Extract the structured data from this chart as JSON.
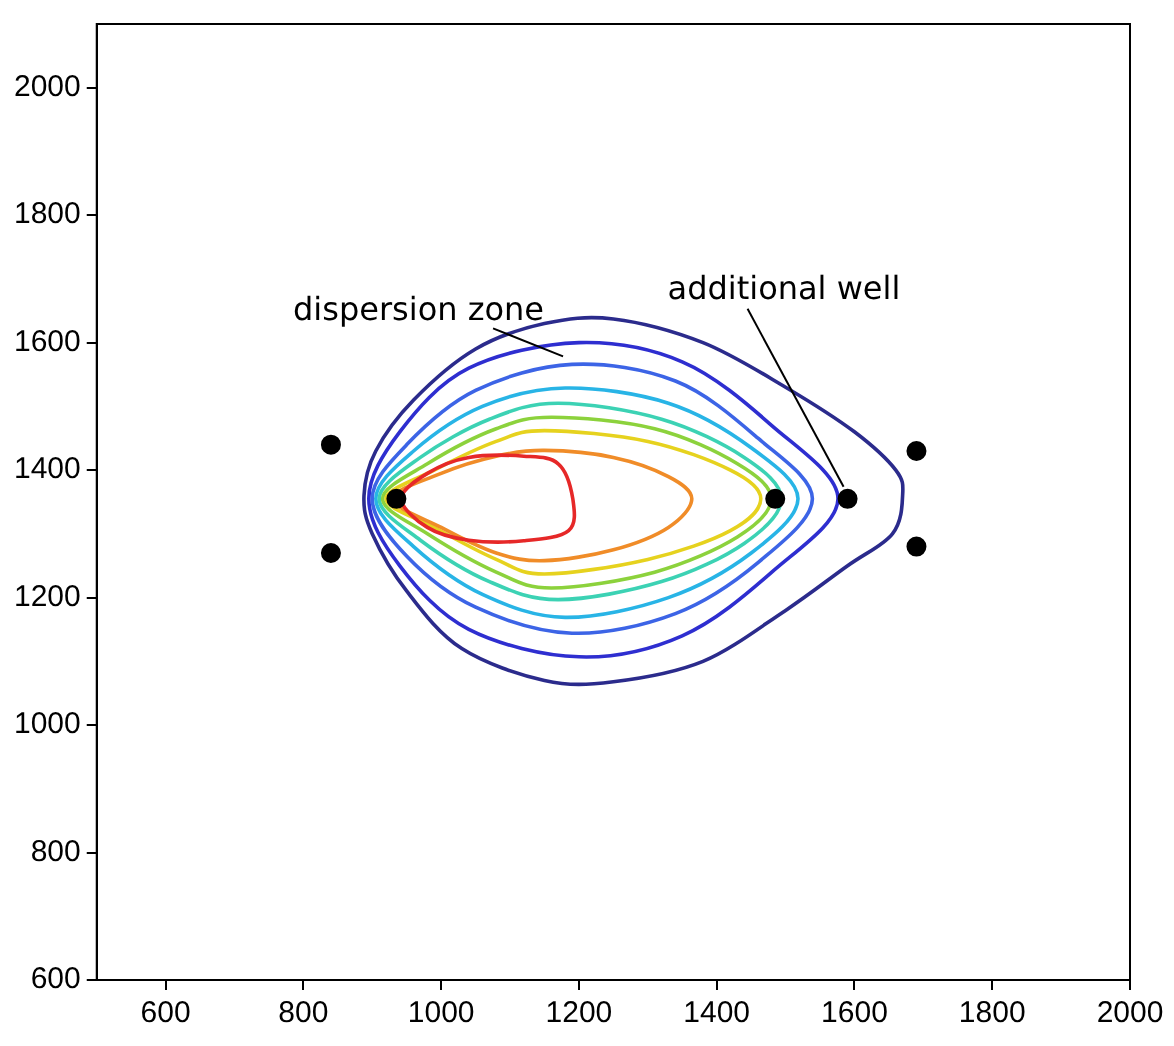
{
  "chart_data": {
    "type": "scatter",
    "xlim": [
      500,
      2000
    ],
    "ylim": [
      600,
      2100
    ],
    "xticks": [
      600,
      800,
      1000,
      1200,
      1400,
      1600,
      1800,
      2000
    ],
    "yticks": [
      600,
      800,
      1000,
      1200,
      1400,
      1600,
      1800,
      2000
    ],
    "grid": false,
    "legend": false,
    "marker": "circle",
    "series": [
      {
        "color": "#000000",
        "x": [
          840,
          840,
          935,
          1485,
          1590,
          1690,
          1690
        ],
        "values": [
          1440,
          1270,
          1355,
          1355,
          1355,
          1430,
          1280
        ]
      }
    ],
    "annotations": [
      "dispersion zone",
      {
        "text": "additional well",
        "x": 1590,
        "y": 1355
      }
    ]
  }
}
